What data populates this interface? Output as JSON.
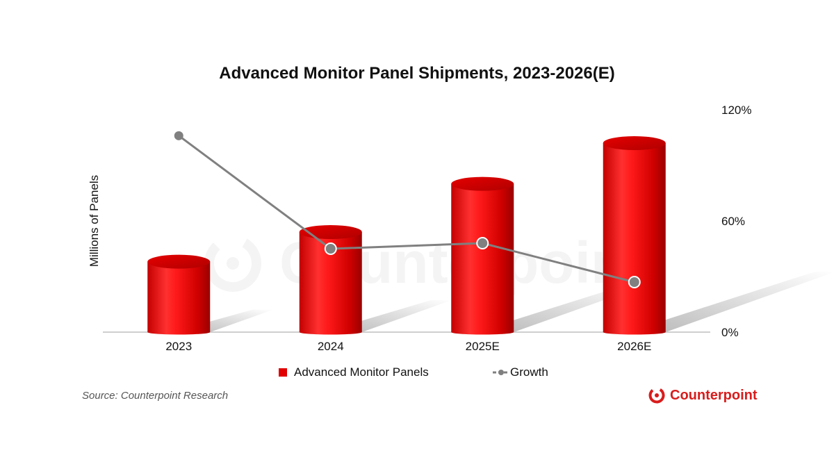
{
  "title": "Advanced Monitor Panel Shipments, 2023-2026(E)",
  "source": "Source: Counterpoint Research",
  "brand": {
    "name": "Counterpoint",
    "color": "#d91c1c",
    "icon": "counterpoint-logo-icon"
  },
  "watermark": "Counterpoint",
  "legend": {
    "bars_label": "Advanced Monitor Panels",
    "line_label": "Growth"
  },
  "colors": {
    "bar": "#e00000",
    "bar_dark": "#a80000",
    "line": "#808080",
    "axis": "#bfbfbf"
  },
  "chart_data": {
    "type": "bar",
    "title": "Advanced Monitor Panel Shipments, 2023-2026(E)",
    "categories": [
      "2023",
      "2024",
      "2025E",
      "2026E"
    ],
    "ylabel": "Millions of Panels",
    "ylabel_right": "",
    "series": [
      {
        "name": "Advanced Monitor Panels",
        "type": "bar",
        "axis": "left",
        "values": [
          38,
          54,
          80,
          102
        ]
      },
      {
        "name": "Growth",
        "type": "line",
        "axis": "right",
        "values": [
          106,
          45,
          48,
          27
        ]
      }
    ],
    "ylim_left": [
      0,
      120
    ],
    "ylim_right": [
      0,
      120
    ],
    "right_ticks": [
      "0%",
      "60%",
      "120%"
    ],
    "right_tick_values": [
      0,
      60,
      120
    ],
    "grid": false,
    "legend_position": "bottom",
    "style": "3d-cylinder"
  }
}
